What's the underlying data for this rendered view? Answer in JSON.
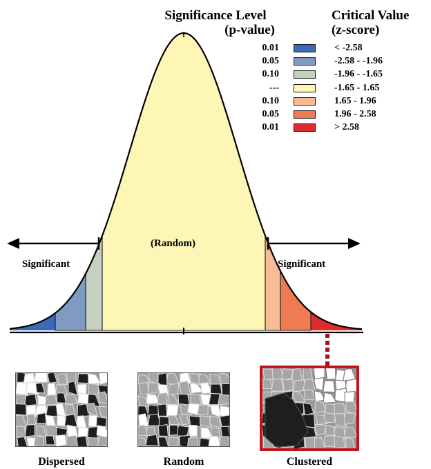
{
  "legend": {
    "left_header_line1": "Significance Level",
    "left_header_line2": "(p-value)",
    "right_header_line1": "Critical Value",
    "right_header_line2": "(z-score)",
    "rows": [
      {
        "p": "0.01",
        "z": "< -2.58",
        "color": "#3b6ab8"
      },
      {
        "p": "0.05",
        "z": "-2.58 - -1.96",
        "color": "#7f9bc2"
      },
      {
        "p": "0.10",
        "z": "-1.96 - -1.65",
        "color": "#c4d0c0"
      },
      {
        "p": "---",
        "z": "-1.65 - 1.65",
        "color": "#fdf6b4"
      },
      {
        "p": "0.10",
        "z": "1.65 - 1.96",
        "color": "#f8bb95"
      },
      {
        "p": "0.05",
        "z": "1.96 - 2.58",
        "color": "#f07a52"
      },
      {
        "p": "0.01",
        "z": "> 2.58",
        "color": "#dd2c2c"
      }
    ]
  },
  "curve": {
    "center_label": "(Random)",
    "left_label": "Significant",
    "right_label": "Significant"
  },
  "thumbnails": [
    {
      "caption": "Dispersed"
    },
    {
      "caption": "Random"
    },
    {
      "caption": "Clustered",
      "highlight_color": "#c0141c"
    }
  ]
}
